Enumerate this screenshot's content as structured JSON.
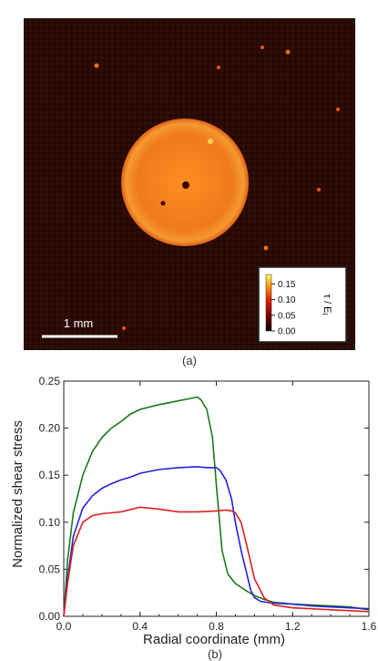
{
  "panel_a": {
    "caption": "(a)",
    "scale_bar_label": "1 mm",
    "colorbar": {
      "label": "τ / E",
      "label_subscript": "l",
      "ticks": [
        "0.15",
        "0.10",
        "0.05",
        "0.00"
      ],
      "tick_values": [
        0.15,
        0.1,
        0.05,
        0.0
      ],
      "range": [
        0.0,
        0.18
      ]
    },
    "colors": {
      "background": "#2a0a04",
      "disc": "#f08020",
      "disc_center": "#ff9a2a",
      "frame": "#333333"
    }
  },
  "panel_b": {
    "caption": "(b)"
  },
  "chart_data": {
    "type": "line",
    "xlabel": "Radial coordinate (mm)",
    "ylabel": "Normalized shear stress",
    "xlim": [
      0.0,
      1.6
    ],
    "ylim": [
      0.0,
      0.25
    ],
    "xticks": [
      "0.0",
      "0.4",
      "0.8",
      "1.2",
      "1.6"
    ],
    "xtick_values": [
      0.0,
      0.4,
      0.8,
      1.2,
      1.6
    ],
    "yticks": [
      "0.00",
      "0.05",
      "0.10",
      "0.15",
      "0.20",
      "0.25"
    ],
    "ytick_values": [
      0.0,
      0.05,
      0.1,
      0.15,
      0.2,
      0.25
    ],
    "grid": false,
    "series": [
      {
        "color": "#1a7a1a",
        "x": [
          0.0,
          0.02,
          0.05,
          0.1,
          0.15,
          0.2,
          0.25,
          0.3,
          0.35,
          0.4,
          0.5,
          0.6,
          0.65,
          0.7,
          0.72,
          0.75,
          0.78,
          0.8,
          0.83,
          0.86,
          0.9,
          0.95,
          1.0,
          1.05,
          1.1,
          1.2,
          1.3,
          1.4,
          1.5,
          1.6
        ],
        "y": [
          0.0,
          0.06,
          0.11,
          0.15,
          0.175,
          0.19,
          0.2,
          0.207,
          0.215,
          0.22,
          0.225,
          0.229,
          0.231,
          0.233,
          0.23,
          0.22,
          0.19,
          0.14,
          0.07,
          0.045,
          0.035,
          0.028,
          0.022,
          0.018,
          0.015,
          0.013,
          0.012,
          0.011,
          0.01,
          0.007
        ]
      },
      {
        "color": "#2222dd",
        "x": [
          0.0,
          0.02,
          0.05,
          0.1,
          0.15,
          0.2,
          0.25,
          0.3,
          0.35,
          0.4,
          0.5,
          0.6,
          0.7,
          0.75,
          0.8,
          0.82,
          0.85,
          0.88,
          0.9,
          0.93,
          0.96,
          0.98,
          1.0,
          1.03,
          1.06,
          1.1,
          1.2,
          1.3,
          1.4,
          1.5,
          1.6
        ],
        "y": [
          0.0,
          0.04,
          0.085,
          0.115,
          0.128,
          0.136,
          0.141,
          0.145,
          0.148,
          0.152,
          0.156,
          0.158,
          0.159,
          0.158,
          0.158,
          0.155,
          0.145,
          0.125,
          0.1,
          0.07,
          0.045,
          0.028,
          0.02,
          0.016,
          0.015,
          0.014,
          0.013,
          0.011,
          0.01,
          0.009,
          0.008
        ]
      },
      {
        "color": "#dd2020",
        "x": [
          0.0,
          0.02,
          0.05,
          0.1,
          0.15,
          0.2,
          0.3,
          0.4,
          0.5,
          0.6,
          0.7,
          0.8,
          0.85,
          0.88,
          0.9,
          0.93,
          0.96,
          1.0,
          1.05,
          1.1,
          1.2,
          1.3,
          1.4,
          1.5,
          1.6
        ],
        "y": [
          0.0,
          0.035,
          0.075,
          0.1,
          0.107,
          0.109,
          0.111,
          0.116,
          0.114,
          0.111,
          0.111,
          0.112,
          0.113,
          0.112,
          0.11,
          0.1,
          0.075,
          0.04,
          0.02,
          0.012,
          0.009,
          0.008,
          0.007,
          0.006,
          0.005
        ]
      }
    ]
  }
}
